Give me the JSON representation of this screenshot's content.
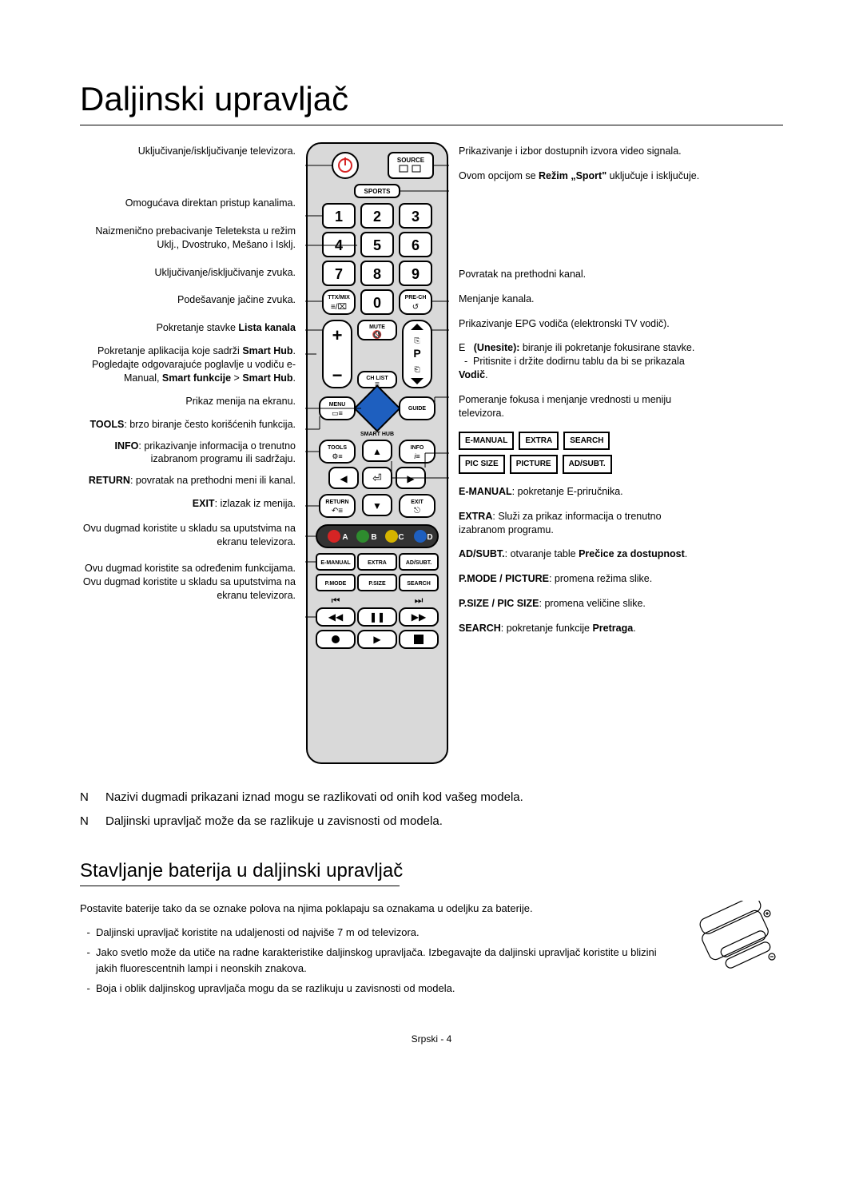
{
  "title": "Daljinski upravljač",
  "left_annotations": [
    "Uključivanje/isključivanje televizora.",
    "Omogućava direktan pristup kanalima.",
    "Naizmenično prebacivanje Teleteksta u režim Uklj., Dvostruko, Mešano i Isklj.",
    "Uključivanje/isključivanje zvuka.",
    "Podešavanje jačine zvuka.",
    "Pokretanje stavke <b>Lista kanala</b>",
    "Pokretanje aplikacija koje sadrži <b>Smart Hub</b>. Pogledajte odgovarajuće poglavlje u vodiču e-Manual, <b>Smart funkcije</b> > <b>Smart Hub</b>.",
    "Prikaz menija na ekranu.",
    "<b>TOOLS</b>: brzo biranje često korišćenih funkcija.",
    "<b>INFO</b>: prikazivanje informacija o trenutno izabranom programu ili sadržaju.",
    "<b>RETURN</b>: povratak na prethodni meni ili kanal.",
    "<b>EXIT</b>: izlazak iz menija.",
    "Ovu dugmad koristite u skladu sa uputstvima na ekranu televizora.",
    "Ovu dugmad koristite sa određenim funkcijama. Ovu dugmad koristite u skladu sa uputstvima na ekranu televizora."
  ],
  "right_annotations_top": [
    "Prikazivanje i izbor dostupnih izvora video signala.",
    "Ovom opcijom se <b>Režim „Sport\"</b> uključuje i isključuje.",
    "Povratak na prethodni kanal.",
    "Menjanje kanala.",
    "Prikazivanje EPG vodiča (elektronski TV vodič).",
    "E&nbsp;&nbsp;&nbsp;<b>(Unesite):</b> biranje ili pokretanje fokusirane stavke.<br>&nbsp;&nbsp;-&nbsp;&nbsp;Pritisnite i držite dodirnu tablu da bi se prikazala <b>Vodič</b>.",
    "Pomeranje fokusa i menjanje vrednosti u meniju televizora."
  ],
  "extra_buttons": {
    "row1": [
      "E-MANUAL",
      "EXTRA",
      "SEARCH"
    ],
    "row2": [
      "PIC SIZE",
      "PICTURE",
      "AD/SUBT."
    ]
  },
  "right_annotations_bottom": [
    "<b>E-MANUAL</b>: pokretanje E-priručnika.",
    "<b>EXTRA</b>: Služi za prikaz informacija o trenutno izabranom programu.",
    "<b>AD/SUBT.</b>: otvaranje table <b>Prečice za dostupnost</b>.",
    "<b>P.MODE / PICTURE</b>: promena režima slike.",
    "<b>P.SIZE / PIC SIZE</b>: promena veličine slike.",
    "<b>SEARCH</b>: pokretanje funkcije <b>Pretraga</b>."
  ],
  "remote": {
    "buttons_top": {
      "source": "SOURCE",
      "sports": "SPORTS"
    },
    "numpad": [
      "1",
      "2",
      "3",
      "4",
      "5",
      "6",
      "7",
      "8",
      "9",
      "0"
    ],
    "row_mix": {
      "left": "TTX/MIX",
      "right": "PRE-CH"
    },
    "mute": "MUTE",
    "chlist": "CH LIST",
    "p_label": "P",
    "menu": "MENU",
    "guide": "GUIDE",
    "smarthub": "SMART HUB",
    "tools": "TOOLS",
    "info": "INFO",
    "return": "RETURN",
    "exit": "EXIT",
    "abcd": [
      "A",
      "B",
      "C",
      "D"
    ],
    "row_f1": [
      "E-MANUAL",
      "EXTRA",
      "AD/SUBT."
    ],
    "row_f2": [
      "P.MODE",
      "P.SIZE",
      "SEARCH"
    ]
  },
  "notes": [
    "Nazivi dugmadi prikazani iznad mogu se razlikovati od onih kod vašeg modela.",
    "Daljinski upravljač može da se razlikuje u zavisnosti od modela."
  ],
  "subtitle": "Stavljanje baterija u daljinski upravljač",
  "battery_intro": "Postavite baterije tako da se oznake polova na njima poklapaju sa oznakama u odeljku za baterije.",
  "battery_bullets": [
    "Daljinski upravljač koristite na udaljenosti od najviše 7 m od televizora.",
    "Jako svetlo može da utiče na radne karakteristike daljinskog upravljača. Izbegavajte da daljinski upravljač koristite u blizini jakih fluorescentnih lampi i neonskih znakova.",
    "Boja i oblik daljinskog upravljača mogu da se razlikuju u zavisnosti od modela."
  ],
  "footer": "Srpski - 4",
  "colors": {
    "remote_bg": "#d9d9d9",
    "button_fill": "#ffffff",
    "button_dark": "#333333",
    "stroke": "#000000",
    "red": "#d62424",
    "green": "#2e8b2e",
    "yellow": "#d6b400",
    "blue": "#1e5fbf"
  }
}
